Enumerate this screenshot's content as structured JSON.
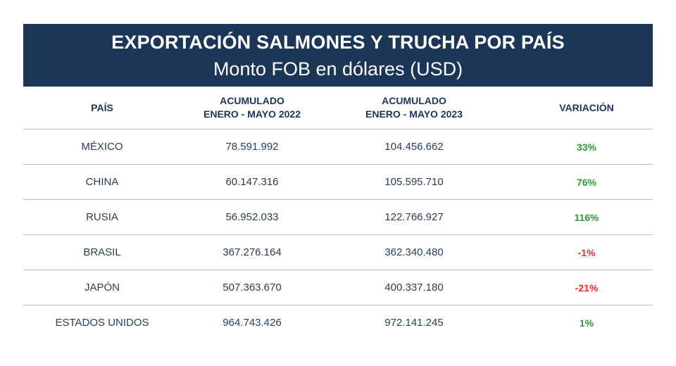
{
  "title": "EXPORTACIÓN SALMONES Y TRUCHA POR PAÍS",
  "subtitle": "Monto FOB en dólares (USD)",
  "chart_data": {
    "type": "table",
    "title": "EXPORTACIÓN SALMONES Y TRUCHA POR PAÍS",
    "subtitle": "Monto FOB en dólares (USD)",
    "columns": [
      {
        "line1": "PAÍS",
        "line2": ""
      },
      {
        "line1": "ACUMULADO",
        "line2": "ENERO - MAYO 2022"
      },
      {
        "line1": "ACUMULADO",
        "line2": "ENERO - MAYO 2023"
      },
      {
        "line1": "VARIACIÓN",
        "line2": ""
      }
    ],
    "rows": [
      {
        "pais": "MÉXICO",
        "acum_2022": "78.591.992",
        "acum_2023": "104.456.662",
        "variacion": "33%",
        "sign": "pos"
      },
      {
        "pais": "CHINA",
        "acum_2022": "60.147.316",
        "acum_2023": "105.595.710",
        "variacion": "76%",
        "sign": "pos"
      },
      {
        "pais": "RUSIA",
        "acum_2022": "56.952.033",
        "acum_2023": "122.766.927",
        "variacion": "116%",
        "sign": "pos"
      },
      {
        "pais": "BRASIL",
        "acum_2022": "367.276.164",
        "acum_2023": "362.340.480",
        "variacion": "-1%",
        "sign": "neg"
      },
      {
        "pais": "JAPÓN",
        "acum_2022": "507.363.670",
        "acum_2023": "400.337.180",
        "variacion": "-21%",
        "sign": "neg"
      },
      {
        "pais": "ESTADOS UNIDOS",
        "acum_2022": "964.743.426",
        "acum_2023": "972.141.245",
        "variacion": "1%",
        "sign": "pos"
      }
    ]
  },
  "colors": {
    "banner": "#1b3657",
    "positive": "#2e9a3a",
    "negative": "#e0322a"
  }
}
